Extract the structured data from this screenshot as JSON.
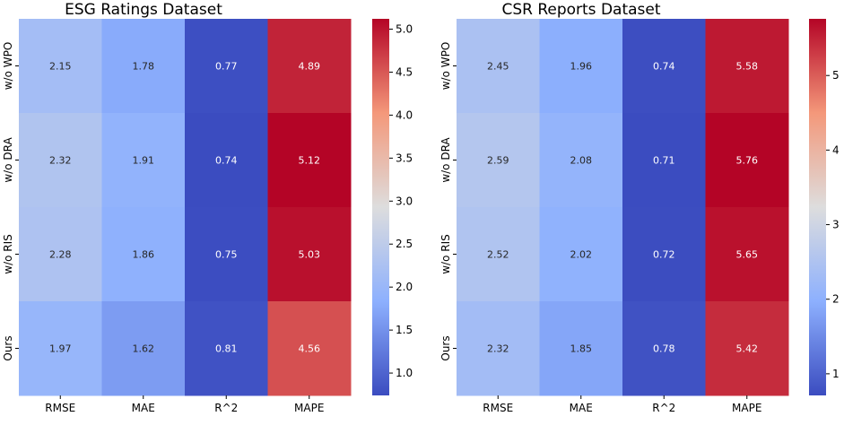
{
  "chart_data": [
    {
      "type": "heatmap",
      "title": "ESG Ratings Dataset",
      "xlabel": "",
      "ylabel": "",
      "columns": [
        "RMSE",
        "MAE",
        "R^2",
        "MAPE"
      ],
      "rows": [
        "w/o WPO",
        "w/o DRA",
        "w/o RIS",
        "Ours"
      ],
      "values": [
        [
          2.15,
          1.78,
          0.77,
          4.89
        ],
        [
          2.32,
          1.91,
          0.74,
          5.12
        ],
        [
          2.28,
          1.86,
          0.75,
          5.03
        ],
        [
          1.97,
          1.62,
          0.81,
          4.56
        ]
      ],
      "value_labels": [
        [
          "2.15",
          "1.78",
          "0.77",
          "4.89"
        ],
        [
          "2.32",
          "1.91",
          "0.74",
          "5.12"
        ],
        [
          "2.28",
          "1.86",
          "0.75",
          "5.03"
        ],
        [
          "1.97",
          "1.62",
          "0.81",
          "4.56"
        ]
      ],
      "colormap": "coolwarm",
      "color_range": [
        0.74,
        5.12
      ],
      "colorbar_ticks": [
        1.0,
        1.5,
        2.0,
        2.5,
        3.0,
        3.5,
        4.0,
        4.5,
        5.0
      ],
      "colorbar_tick_labels": [
        "1.0",
        "1.5",
        "2.0",
        "2.5",
        "3.0",
        "3.5",
        "4.0",
        "4.5",
        "5.0"
      ]
    },
    {
      "type": "heatmap",
      "title": "CSR Reports Dataset",
      "xlabel": "",
      "ylabel": "",
      "columns": [
        "RMSE",
        "MAE",
        "R^2",
        "MAPE"
      ],
      "rows": [
        "w/o WPO",
        "w/o DRA",
        "w/o RIS",
        "Ours"
      ],
      "values": [
        [
          2.45,
          1.96,
          0.74,
          5.58
        ],
        [
          2.59,
          2.08,
          0.71,
          5.76
        ],
        [
          2.52,
          2.02,
          0.72,
          5.65
        ],
        [
          2.32,
          1.85,
          0.78,
          5.42
        ]
      ],
      "value_labels": [
        [
          "2.45",
          "1.96",
          "0.74",
          "5.58"
        ],
        [
          "2.59",
          "2.08",
          "0.71",
          "5.76"
        ],
        [
          "2.52",
          "2.02",
          "0.72",
          "5.65"
        ],
        [
          "2.32",
          "1.85",
          "0.78",
          "5.42"
        ]
      ],
      "colormap": "coolwarm",
      "color_range": [
        0.71,
        5.76
      ],
      "colorbar_ticks": [
        1,
        2,
        3,
        4,
        5
      ],
      "colorbar_tick_labels": [
        "1",
        "2",
        "3",
        "4",
        "5"
      ]
    }
  ],
  "colors": {
    "cool_end": "#3b4cc0",
    "neutral_mid": "#dddddd",
    "warm_end": "#b40426",
    "light_text": "#ffffff",
    "dark_text": "#262626"
  }
}
